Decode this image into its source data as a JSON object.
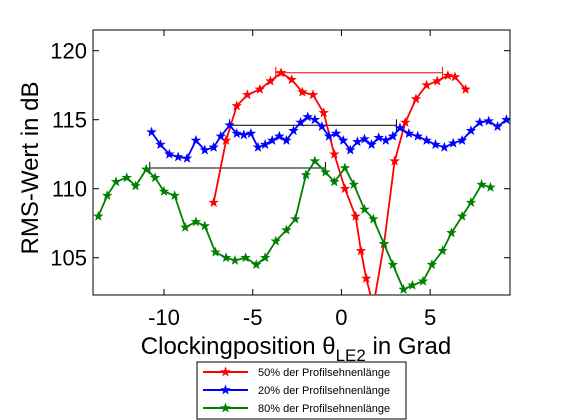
{
  "chart_data": {
    "type": "line",
    "xlabel": "Clockingposition θ",
    "xlabel_subscript": "LE2",
    "xlabel_suffix": " in Grad",
    "ylabel": "RMS-Wert in dB",
    "xlim": [
      -14,
      9.5
    ],
    "ylim": [
      102.3,
      121.5
    ],
    "xticks": [
      -10,
      -5,
      0,
      5
    ],
    "xtick_labels": [
      "-10",
      "-5",
      "0",
      "5"
    ],
    "yticks": [
      105,
      110,
      115,
      120
    ],
    "ytick_labels": [
      "105",
      "110",
      "115",
      "120"
    ],
    "grid": false,
    "legend_position": "bottom",
    "series": [
      {
        "name": "50% der Profilsehnenlänge",
        "color": "#ff0000",
        "x": [
          -7.2,
          -6.5,
          -5.9,
          -5.3,
          -4.6,
          -4.0,
          -3.4,
          -2.8,
          -2.2,
          -1.6,
          -1.0,
          -0.4,
          0.2,
          0.8,
          1.1,
          1.4,
          1.8,
          2.4,
          3.0,
          3.6,
          4.2,
          4.8,
          5.4,
          6.0,
          6.4,
          7.0
        ],
        "y": [
          109.0,
          113.5,
          116.0,
          116.8,
          117.2,
          117.8,
          118.4,
          117.9,
          117.0,
          116.8,
          115.5,
          112.5,
          110.0,
          108.0,
          105.5,
          103.5,
          101.5,
          106.0,
          112.0,
          114.8,
          116.5,
          117.5,
          117.8,
          118.2,
          118.1,
          117.2
        ]
      },
      {
        "name": "20% der Profilsehnenlänge",
        "color": "#0000ff",
        "x": [
          -10.7,
          -10.2,
          -9.7,
          -9.2,
          -8.7,
          -8.2,
          -7.7,
          -7.2,
          -6.8,
          -6.3,
          -5.9,
          -5.5,
          -5.1,
          -4.7,
          -4.3,
          -3.9,
          -3.5,
          -3.1,
          -2.7,
          -2.3,
          -1.9,
          -1.5,
          -1.1,
          -0.7,
          -0.3,
          0.1,
          0.5,
          0.9,
          1.3,
          1.7,
          2.1,
          2.5,
          2.9,
          3.3,
          3.8,
          4.3,
          4.8,
          5.3,
          5.8,
          6.3,
          6.8,
          7.3,
          7.8,
          8.3,
          8.8,
          9.3
        ],
        "y": [
          114.1,
          113.2,
          112.5,
          112.3,
          112.2,
          113.5,
          112.8,
          113.0,
          113.8,
          114.6,
          114.0,
          113.9,
          114.0,
          113.0,
          113.2,
          113.5,
          113.8,
          113.5,
          114.2,
          114.8,
          115.2,
          115.0,
          114.5,
          113.8,
          114.0,
          113.5,
          112.8,
          113.4,
          113.6,
          113.2,
          113.7,
          113.5,
          113.8,
          114.4,
          114.0,
          113.8,
          113.5,
          113.2,
          113.0,
          113.3,
          113.5,
          114.2,
          114.8,
          114.9,
          114.5,
          115.0
        ]
      },
      {
        "name": "80% der Profilsehnenlänge",
        "color": "#008000",
        "x": [
          -13.7,
          -13.2,
          -12.7,
          -12.1,
          -11.6,
          -11.0,
          -10.5,
          -10.0,
          -9.4,
          -8.8,
          -8.2,
          -7.7,
          -7.1,
          -6.5,
          -6.0,
          -5.4,
          -4.8,
          -4.3,
          -3.7,
          -3.1,
          -2.6,
          -2.0,
          -1.5,
          -0.9,
          -0.4,
          0.2,
          0.7,
          1.3,
          1.8,
          2.4,
          2.9,
          3.5,
          4.0,
          4.6,
          5.1,
          5.7,
          6.2,
          6.8,
          7.3,
          7.9,
          8.4
        ],
        "y": [
          108.0,
          109.5,
          110.5,
          110.8,
          110.2,
          111.4,
          110.8,
          109.8,
          109.5,
          107.2,
          107.6,
          107.3,
          105.4,
          105.0,
          104.8,
          105.0,
          104.5,
          105.0,
          106.2,
          107.0,
          107.8,
          111.0,
          112.0,
          111.2,
          110.5,
          111.5,
          110.3,
          108.5,
          107.8,
          106.0,
          104.5,
          102.7,
          103.0,
          103.3,
          104.5,
          105.5,
          106.8,
          108.0,
          109.0,
          110.3,
          110.1
        ]
      }
    ],
    "reference_lines": [
      {
        "color": "#ff0000",
        "x": [
          -3.7,
          5.7
        ],
        "y": 118.4
      },
      {
        "color": "#000000",
        "x": [
          -6.3,
          3.1
        ],
        "y": 114.6
      },
      {
        "color": "#000000",
        "x": [
          -10.8,
          -0.9
        ],
        "y": 111.5
      }
    ]
  }
}
